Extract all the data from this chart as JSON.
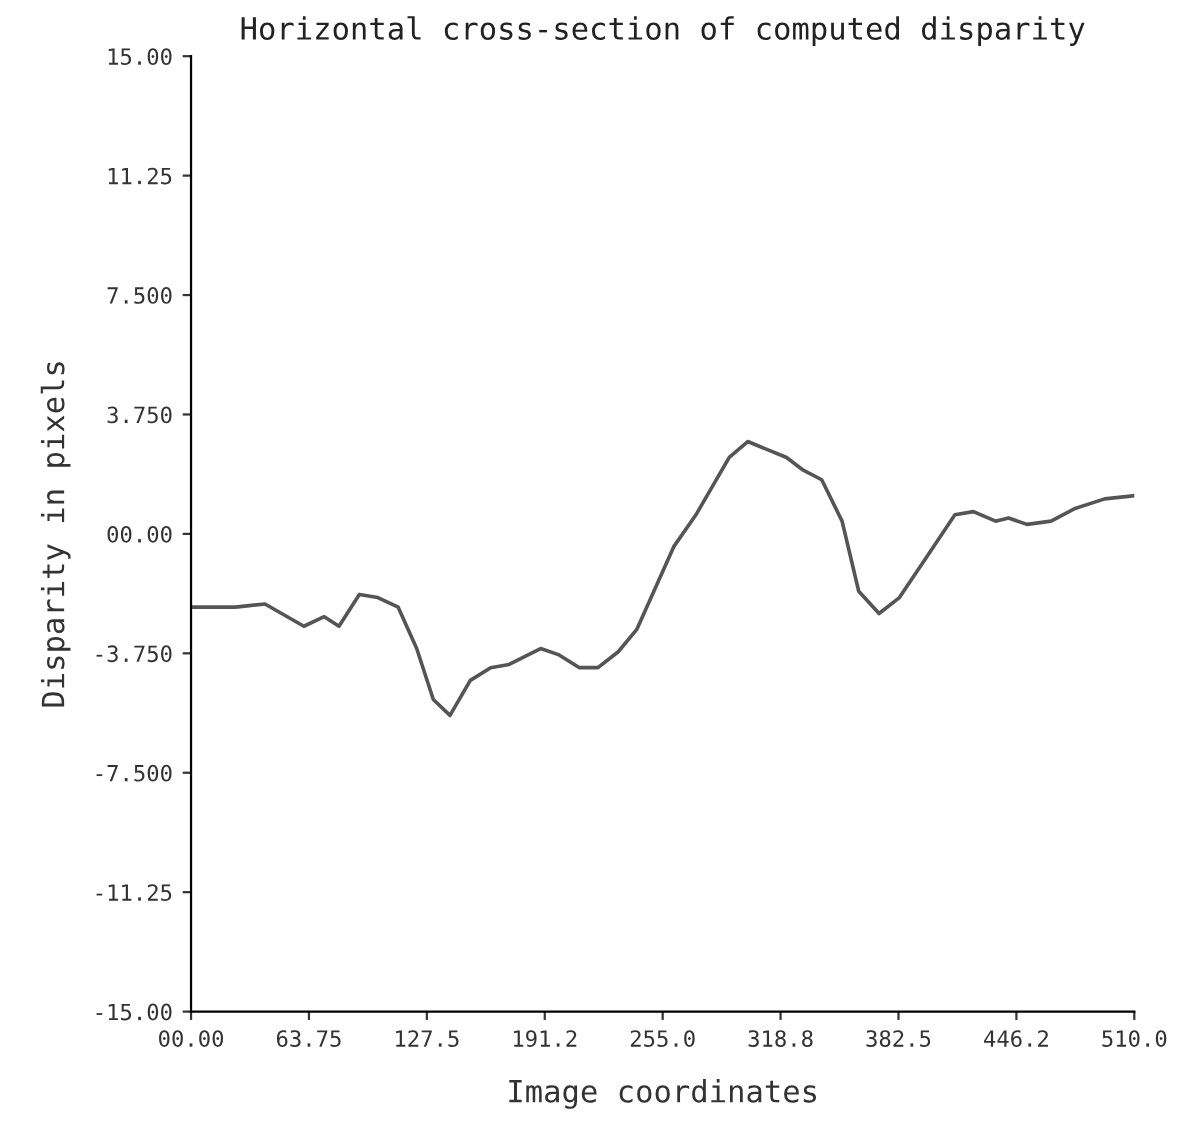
{
  "chart_data": {
    "type": "line",
    "title": "Horizontal cross-section of computed disparity",
    "xlabel": "Image coordinates",
    "ylabel": "Disparity in pixels",
    "x": [
      0,
      24,
      40,
      61,
      72,
      80,
      91,
      101,
      112,
      122,
      131,
      140,
      151,
      162,
      172,
      189,
      199,
      210,
      220,
      231,
      241,
      261,
      273,
      291,
      301,
      322,
      331,
      341,
      352,
      361,
      372,
      383,
      398,
      413,
      423,
      435,
      442,
      452,
      465,
      478,
      494,
      510
    ],
    "series": [
      {
        "color": "#555555",
        "values": [
          -2.3,
          -2.3,
          -2.2,
          -2.9,
          -2.6,
          -2.9,
          -1.9,
          -2.0,
          -2.3,
          -3.6,
          -5.2,
          -5.7,
          -4.6,
          -4.2,
          -4.1,
          -3.6,
          -3.8,
          -4.2,
          -4.2,
          -3.7,
          -3.0,
          -0.4,
          0.6,
          2.4,
          2.9,
          2.4,
          2.0,
          1.7,
          0.4,
          -1.8,
          -2.5,
          -2.0,
          -0.7,
          0.6,
          0.7,
          0.4,
          0.5,
          0.3,
          0.4,
          0.8,
          1.1,
          1.2
        ]
      }
    ],
    "xlim": [
      0,
      510
    ],
    "ylim": [
      -15,
      15
    ],
    "xticks": [
      {
        "value": 0,
        "label": "00.00"
      },
      {
        "value": 63.75,
        "label": "63.75"
      },
      {
        "value": 127.5,
        "label": "127.5"
      },
      {
        "value": 191.25,
        "label": "191.2"
      },
      {
        "value": 255,
        "label": "255.0"
      },
      {
        "value": 318.75,
        "label": "318.8"
      },
      {
        "value": 382.5,
        "label": "382.5"
      },
      {
        "value": 446.25,
        "label": "446.2"
      },
      {
        "value": 510,
        "label": "510.0"
      }
    ],
    "yticks": [
      {
        "value": -15,
        "label": "-15.00"
      },
      {
        "value": -11.25,
        "label": "-11.25"
      },
      {
        "value": -7.5,
        "label": "-7.500"
      },
      {
        "value": -3.75,
        "label": "-3.750"
      },
      {
        "value": 0,
        "label": "00.00"
      },
      {
        "value": 3.75,
        "label": "3.750"
      },
      {
        "value": 7.5,
        "label": "7.500"
      },
      {
        "value": 11.25,
        "label": "11.25"
      },
      {
        "value": 15,
        "label": "15.00"
      }
    ],
    "grid": false,
    "line_style": "solid"
  }
}
